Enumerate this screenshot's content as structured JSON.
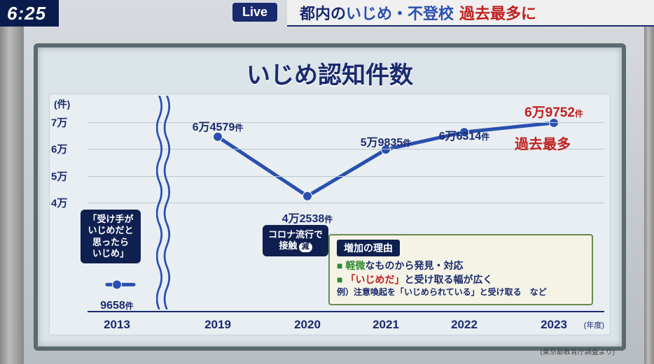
{
  "clock": "6:25",
  "live_label": "Live",
  "headline": {
    "pre": "都内の",
    "blue": "いじめ・不登校",
    "red": "過去最多に"
  },
  "board_title": "いじめ認知件数",
  "chart": {
    "type": "line",
    "y_unit": "(件)",
    "x_unit": "(年度)",
    "attribution": "(東京都教育庁調査より)",
    "y_ticks": [
      40000,
      50000,
      60000,
      70000
    ],
    "y_tick_labels": [
      "4万",
      "5万",
      "6万",
      "7万"
    ],
    "ylim": [
      0,
      75000
    ],
    "years": [
      "2013",
      "2019",
      "2020",
      "2021",
      "2022",
      "2023"
    ],
    "x_positions_pct": [
      12,
      30,
      46,
      60,
      74,
      90
    ],
    "values": [
      9658,
      64579,
      42538,
      59835,
      66314,
      69752
    ],
    "value_labels": [
      "9658件",
      "6万4579件",
      "4万2538件",
      "5万9835件",
      "6万6314件",
      "6万9752件"
    ],
    "label_y_offsets": [
      22,
      -28,
      18,
      -24,
      -8,
      -30
    ],
    "last_is_red": true,
    "peak_badge": "過去最多",
    "line_color": "#2a4fb0",
    "line_width": 5,
    "marker_color": "#2a4fb0",
    "marker_radius": 6,
    "background_color": "#e8eef1",
    "grid_color": "#b8c8d0",
    "break_after_index": 0,
    "axis_baseline_y_pct": 90,
    "axis_top_y_pct": 6
  },
  "note_2013": {
    "lines": [
      "「受け手が",
      "いじめだと",
      "思ったら",
      "いじめ」"
    ]
  },
  "note_2020": {
    "line1": "コロナ流行で",
    "line2_pre": "接触",
    "line2_pill": "減"
  },
  "reason_box": {
    "title": "増加の理由",
    "line1": {
      "bullet": "■",
      "green": "軽微",
      "rest": "なものから発見・対応"
    },
    "line2": {
      "bullet": "■",
      "red": "「いじめだ」",
      "rest": "と受け取る幅が広く"
    },
    "sub": "例）注意喚起を「いじめられている」と受け取る　など"
  },
  "colors": {
    "navy": "#1a2a6e",
    "deep_navy": "#0f2050",
    "red": "#c02020",
    "green": "#2e8a30",
    "board_bg": "#dbe4e8",
    "line": "#2a4fb0"
  }
}
